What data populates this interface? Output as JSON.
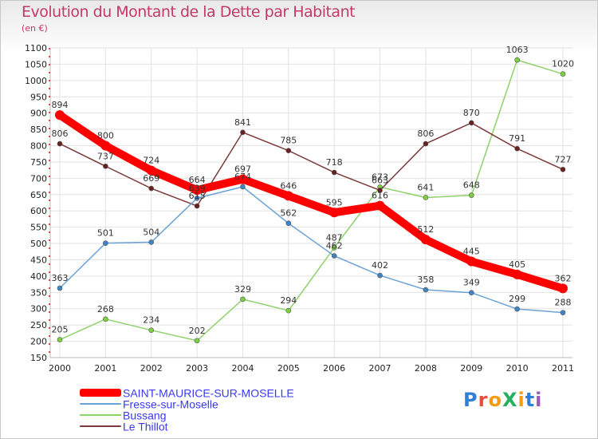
{
  "title": "Evolution du Montant de la Dette par Habitant",
  "subtitle": "(en €)",
  "brand": {
    "text": "ProXiti",
    "letters": [
      {
        "ch": "P",
        "color": "#2f7fd9"
      },
      {
        "ch": "r",
        "color": "#e74c3c"
      },
      {
        "ch": "o",
        "color": "#f39c12"
      },
      {
        "ch": "X",
        "color": "#27ae60"
      },
      {
        "ch": "i",
        "color": "#f39c12"
      },
      {
        "ch": "t",
        "color": "#2f7fd9"
      },
      {
        "ch": "i",
        "color": "#9b59b6"
      }
    ]
  },
  "chart_data": {
    "type": "line",
    "x": [
      "2000",
      "2001",
      "2002",
      "2003",
      "2004",
      "2005",
      "2006",
      "2007",
      "2008",
      "2009",
      "2010",
      "2011"
    ],
    "ylim": [
      150,
      1100
    ],
    "yticks": [
      150,
      200,
      250,
      300,
      350,
      400,
      450,
      500,
      550,
      600,
      650,
      700,
      750,
      800,
      850,
      900,
      950,
      1000,
      1050,
      1100
    ],
    "grid": true,
    "legend_position": "bottom-left",
    "series": [
      {
        "name": "Bussang",
        "color": "#8fd16a",
        "marker": "#7dd13f",
        "values": [
          205,
          268,
          234,
          202,
          329,
          294,
          487,
          673,
          641,
          648,
          1063,
          1020
        ]
      },
      {
        "name": "Le Thillot",
        "color": "#7b3a3a",
        "marker": "#6a2020",
        "values": [
          806,
          737,
          669,
          615,
          841,
          785,
          718,
          663,
          806,
          870,
          791,
          727
        ]
      },
      {
        "name": "Fresse-sur-Moselle",
        "color": "#6aa2d6",
        "marker": "#3f83c7",
        "values": [
          363,
          501,
          504,
          639,
          674,
          562,
          462,
          402,
          358,
          349,
          299,
          288
        ]
      },
      {
        "name": "SAINT-MAURICE-SUR-MOSELLE",
        "color": "#ff0000",
        "marker": "#ff0000",
        "values": [
          894,
          800,
          724,
          664,
          697,
          646,
          595,
          616,
          512,
          445,
          405,
          362
        ]
      }
    ],
    "legend_order": [
      "SAINT-MAURICE-SUR-MOSELLE",
      "Fresse-sur-Moselle",
      "Bussang",
      "Le Thillot"
    ]
  }
}
